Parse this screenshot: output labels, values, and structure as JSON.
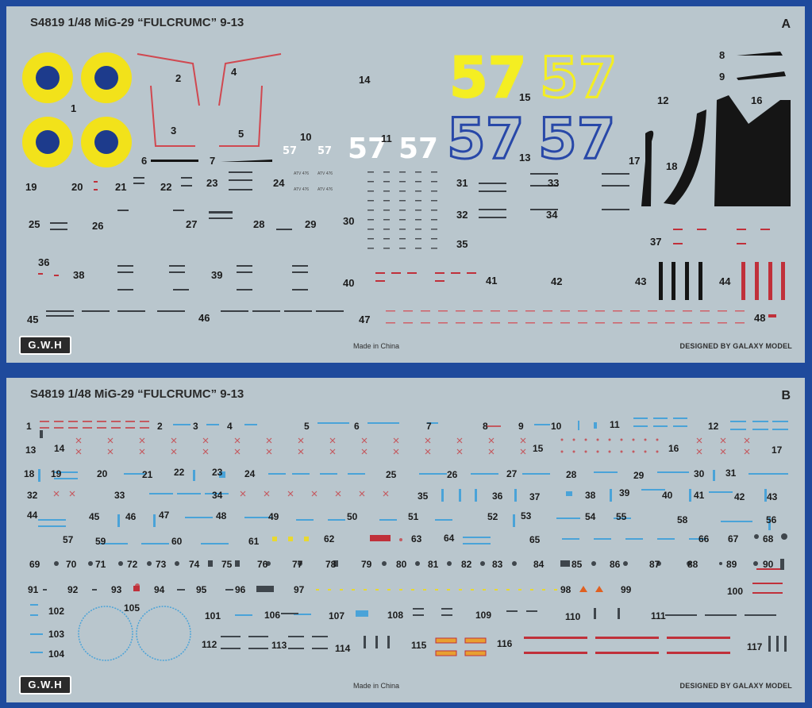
{
  "sheet_a": {
    "title": "S4819 1/48 MiG-29 “FULCRUMC” 9-13",
    "letter": "A",
    "made_in": "Made in China",
    "designed_by": "DESIGNED BY GALAXY MODEL",
    "logo": "G.W.H",
    "big_number": "57",
    "small_number": "57",
    "tiny_marking": "ATV 476",
    "labels": [
      "1",
      "2",
      "3",
      "4",
      "5",
      "6",
      "7",
      "8",
      "9",
      "10",
      "11",
      "12",
      "13",
      "14",
      "15",
      "16",
      "17",
      "18",
      "19",
      "20",
      "21",
      "22",
      "23",
      "24",
      "25",
      "26",
      "27",
      "28",
      "29",
      "30",
      "31",
      "32",
      "33",
      "34",
      "35",
      "36",
      "37",
      "38",
      "39",
      "40",
      "41",
      "42",
      "43",
      "44",
      "45",
      "46",
      "47",
      "48"
    ],
    "colors": {
      "roundel_outer": "#f2e21a",
      "roundel_inner": "#1d3b8c",
      "yellow_57": "#f4ee22",
      "blue_57": "#2848a8",
      "stencil_red": "#c0303a",
      "black": "#151515"
    }
  },
  "sheet_b": {
    "title": "S4819 1/48 MiG-29 “FULCRUMC” 9-13",
    "letter": "B",
    "made_in": "Made in China",
    "designed_by": "DESIGNED BY GALAXY MODEL",
    "logo": "G.W.H",
    "labels": [
      "1",
      "2",
      "3",
      "4",
      "5",
      "6",
      "7",
      "8",
      "9",
      "10",
      "11",
      "12",
      "13",
      "14",
      "15",
      "16",
      "17",
      "18",
      "19",
      "20",
      "21",
      "22",
      "23",
      "24",
      "25",
      "26",
      "27",
      "28",
      "29",
      "30",
      "31",
      "32",
      "33",
      "34",
      "35",
      "36",
      "37",
      "38",
      "39",
      "40",
      "41",
      "42",
      "43",
      "44",
      "45",
      "46",
      "47",
      "48",
      "49",
      "50",
      "51",
      "52",
      "53",
      "54",
      "55",
      "56",
      "57",
      "58",
      "59",
      "60",
      "61",
      "62",
      "63",
      "64",
      "65",
      "66",
      "67",
      "68",
      "69",
      "70",
      "71",
      "72",
      "73",
      "74",
      "75",
      "76",
      "77",
      "78",
      "79",
      "80",
      "81",
      "82",
      "83",
      "84",
      "85",
      "86",
      "87",
      "88",
      "89",
      "90",
      "91",
      "92",
      "93",
      "94",
      "95",
      "96",
      "97",
      "98",
      "99",
      "100",
      "101",
      "102",
      "103",
      "104",
      "105",
      "106",
      "107",
      "108",
      "109",
      "110",
      "111",
      "112",
      "113",
      "114",
      "115",
      "116",
      "117"
    ],
    "colors": {
      "stencil_blue": "#4aa3d8",
      "stencil_red": "#c0303a",
      "yellow": "#f4e22a",
      "orange": "#e8a030"
    }
  }
}
